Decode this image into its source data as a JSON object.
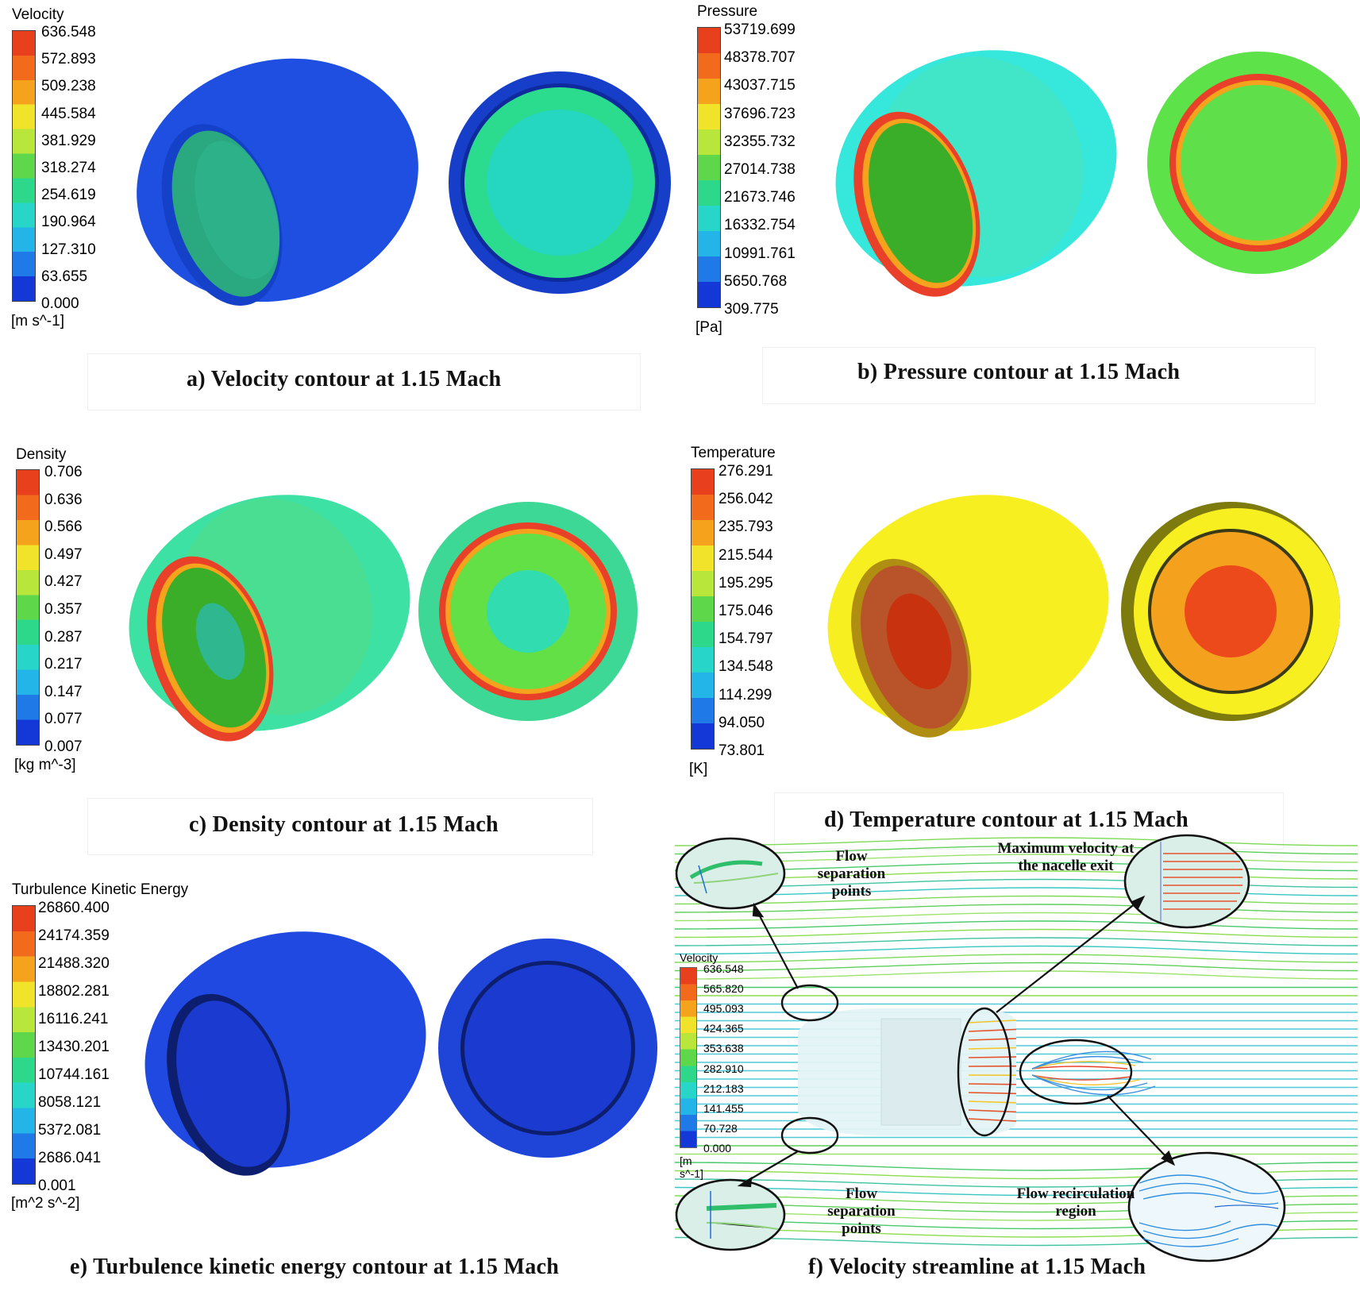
{
  "panels": {
    "a": {
      "cbar_title": "Velocity",
      "unit": "[m s^-1]",
      "ticks": [
        "636.548",
        "572.893",
        "509.238",
        "445.584",
        "381.929",
        "318.274",
        "254.619",
        "190.964",
        "127.310",
        "63.655",
        "0.000"
      ],
      "caption": "a)  Velocity contour at 1.15 Mach"
    },
    "b": {
      "cbar_title": "Pressure",
      "unit": "[Pa]",
      "ticks": [
        "53719.699",
        "48378.707",
        "43037.715",
        "37696.723",
        "32355.732",
        "27014.738",
        "21673.746",
        "16332.754",
        "10991.761",
        "5650.768",
        "309.775"
      ],
      "caption": "b)  Pressure contour at 1.15 Mach"
    },
    "c": {
      "cbar_title": "Density",
      "unit": "[kg m^-3]",
      "ticks": [
        "0.706",
        "0.636",
        "0.566",
        "0.497",
        "0.427",
        "0.357",
        "0.287",
        "0.217",
        "0.147",
        "0.077",
        "0.007"
      ],
      "caption": "c)  Density contour at 1.15 Mach"
    },
    "d": {
      "cbar_title": "Temperature",
      "unit": "[K]",
      "ticks": [
        "276.291",
        "256.042",
        "235.793",
        "215.544",
        "195.295",
        "175.046",
        "154.797",
        "134.548",
        "114.299",
        "94.050",
        "73.801"
      ],
      "caption": "d)  Temperature contour at 1.15 Mach"
    },
    "e": {
      "cbar_title": "Turbulence Kinetic Energy",
      "unit": "[m^2 s^-2]",
      "ticks": [
        "26860.400",
        "24174.359",
        "21488.320",
        "18802.281",
        "16116.241",
        "13430.201",
        "10744.161",
        "8058.121",
        "5372.081",
        "2686.041",
        "0.001"
      ],
      "caption": "e)  Turbulence kinetic energy contour at 1.15 Mach"
    },
    "f": {
      "cbar_title": "Velocity",
      "unit": "[m s^-1]",
      "ticks": [
        "636.548",
        "565.820",
        "495.093",
        "424.365",
        "353.638",
        "282.910",
        "212.183",
        "141.455",
        "70.728",
        "0.000"
      ],
      "caption": "f)  Velocity streamline at 1.15 Mach",
      "annotations": {
        "sep_top": "Flow separation points",
        "max_vel": "Maximum velocity at the nacelle exit",
        "sep_bottom": "Flow separation points",
        "recirc": "Flow recirculation region"
      }
    }
  },
  "colors": {
    "cbar": [
      "#e8401c",
      "#f26b1d",
      "#f5a21c",
      "#f1e22a",
      "#b8e63a",
      "#5ed84a",
      "#2ed88a",
      "#27d6c8",
      "#23b4e8",
      "#1f79e6",
      "#1438d8"
    ],
    "velocity_shell": "#1e4fe0",
    "velocity_inner": "#2bdc8e",
    "velocity_core": "#25d6c0",
    "pressure_shell": "#36e8dc",
    "pressure_inner": "#5fe04a",
    "ring": "#e9402a",
    "density_shell": "#3de1a4",
    "density_inner": "#62e046",
    "density_core": "#31dcb0",
    "temp_shell": "#f7ef1f",
    "temp_inner": "#f4a21d",
    "temp_core": "#ec4a1a",
    "tke_shell": "#1f49e0",
    "tke_inner": "#1a3ad0"
  }
}
